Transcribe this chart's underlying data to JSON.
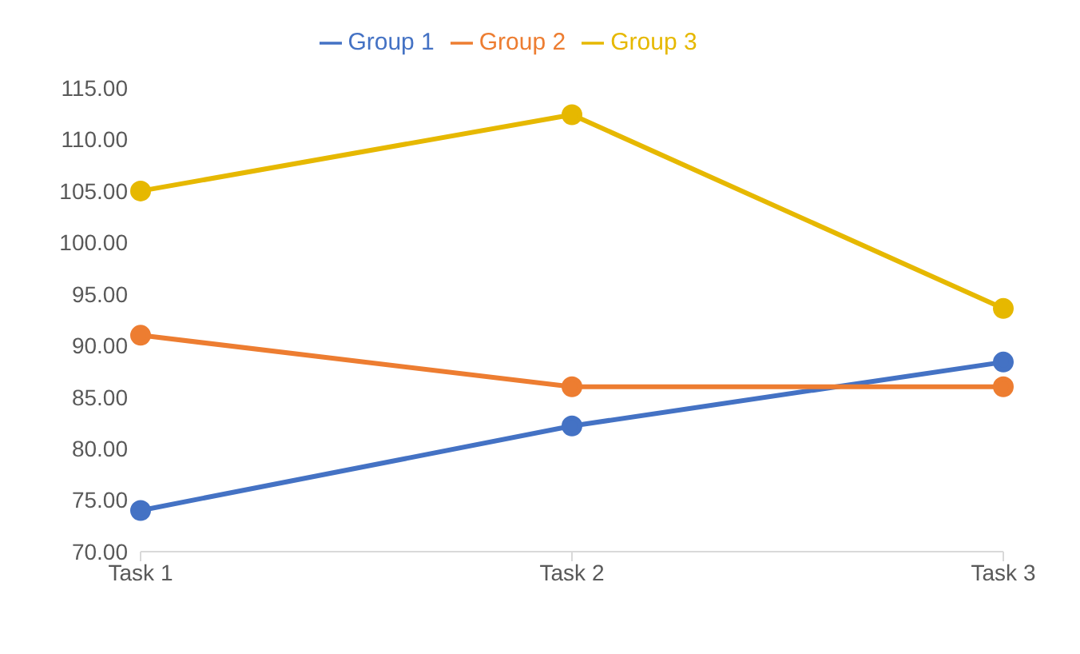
{
  "chart_data": {
    "type": "line",
    "categories": [
      "Task 1",
      "Task 2",
      "Task 3"
    ],
    "series": [
      {
        "name": "Group 1",
        "color": "#4472c4",
        "values": [
          74,
          82.2,
          88.4
        ]
      },
      {
        "name": "Group 2",
        "color": "#ed7d31",
        "values": [
          91,
          86,
          86
        ]
      },
      {
        "name": "Group 3",
        "color": "#e6b800",
        "values": [
          105,
          112.4,
          93.6
        ]
      }
    ],
    "ylim": [
      70,
      115
    ],
    "yticks": [
      {
        "value": 70,
        "label": "70.00"
      },
      {
        "value": 75,
        "label": "75.00"
      },
      {
        "value": 80,
        "label": "80.00"
      },
      {
        "value": 85,
        "label": "85.00"
      },
      {
        "value": 90,
        "label": "90.00"
      },
      {
        "value": 95,
        "label": "95.00"
      },
      {
        "value": 100,
        "label": "100.00"
      },
      {
        "value": 105,
        "label": "105.00"
      },
      {
        "value": 110,
        "label": "110.00"
      },
      {
        "value": 115,
        "label": "115.00"
      }
    ],
    "legend": "top",
    "marker": "circle",
    "line_style": "solid",
    "grid": false
  }
}
